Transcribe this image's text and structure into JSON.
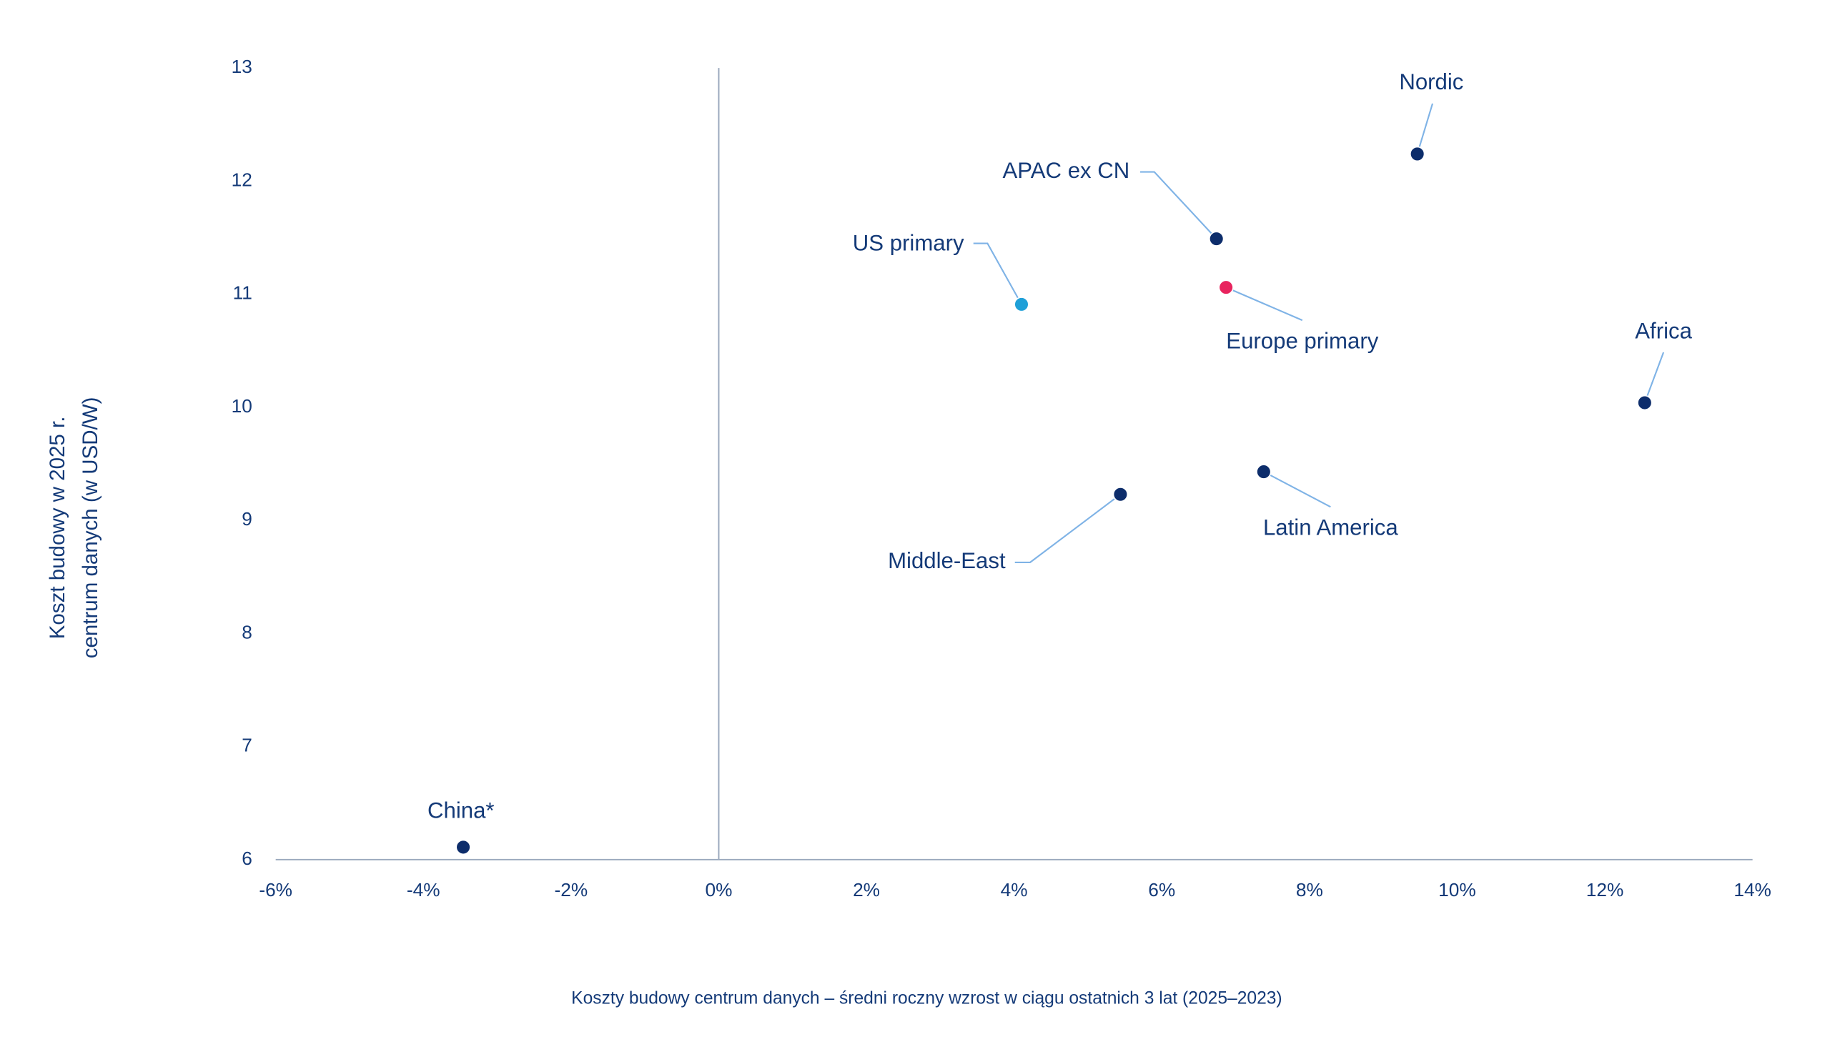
{
  "chart_data": {
    "type": "scatter",
    "y_label": [
      "Koszt budowy w 2025 r.",
      "centrum danych (w USD/W)"
    ],
    "x_label": "Koszty budowy centrum danych – średni roczny wzrost w ciągu ostatnich 3 lat (2025–2023)",
    "xlim": [
      -6,
      14
    ],
    "xticks": [
      {
        "value": -6,
        "label": "-6%"
      },
      {
        "value": -4,
        "label": "-4%"
      },
      {
        "value": -2,
        "label": "-2%"
      },
      {
        "value": 0,
        "label": "0%"
      },
      {
        "value": 2,
        "label": "2%"
      },
      {
        "value": 4,
        "label": "4%"
      },
      {
        "value": 6,
        "label": "6%"
      },
      {
        "value": 8,
        "label": "8%"
      },
      {
        "value": 10,
        "label": "10%"
      },
      {
        "value": 12,
        "label": "12%"
      },
      {
        "value": 14,
        "label": "14%"
      }
    ],
    "ylim": [
      6,
      13
    ],
    "yticks": [
      6,
      7,
      8,
      9,
      10,
      11,
      12,
      13
    ],
    "points": [
      {
        "name": "China*",
        "x": -3.46,
        "y": 6.11,
        "color": "#0d2d6b"
      },
      {
        "name": "US primary",
        "x": 4.1,
        "y": 10.91,
        "color": "#1fa0d8"
      },
      {
        "name": "APAC ex CN",
        "x": 6.74,
        "y": 11.49,
        "color": "#0d2d6b"
      },
      {
        "name": "Europe primary",
        "x": 6.87,
        "y": 11.06,
        "color": "#e8245e"
      },
      {
        "name": "Nordic",
        "x": 9.46,
        "y": 12.24,
        "color": "#0d2d6b"
      },
      {
        "name": "Africa",
        "x": 12.54,
        "y": 10.04,
        "color": "#0d2d6b"
      },
      {
        "name": "Middle-East",
        "x": 5.44,
        "y": 9.23,
        "color": "#0d2d6b"
      },
      {
        "name": "Latin America",
        "x": 7.38,
        "y": 9.43,
        "color": "#0d2d6b"
      }
    ]
  }
}
